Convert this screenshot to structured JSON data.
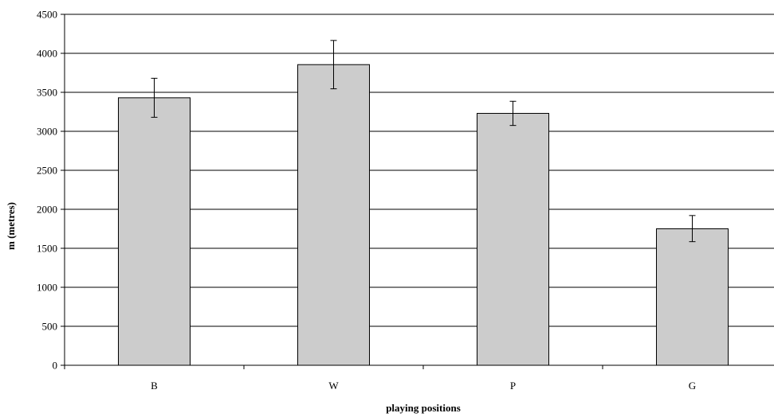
{
  "chart_data": {
    "type": "bar",
    "title": "",
    "xlabel": "playing positions",
    "ylabel": "m (metres)",
    "categories": [
      "B",
      "W",
      "P",
      "G"
    ],
    "values": [
      3430,
      3855,
      3230,
      1750
    ],
    "error_bars": [
      {
        "low": 3180,
        "high": 3680
      },
      {
        "low": 3545,
        "high": 4165
      },
      {
        "low": 3075,
        "high": 3385
      },
      {
        "low": 1585,
        "high": 1920
      }
    ],
    "ylim": [
      0,
      4500
    ],
    "yticks": [
      0,
      500,
      1000,
      1500,
      2000,
      2500,
      3000,
      3500,
      4000,
      4500
    ],
    "grid": "horizontal",
    "legend": "none",
    "colors": {
      "bar_fill": "#cccccc",
      "bar_stroke": "#000000",
      "grid": "#000000",
      "axis": "#000000",
      "error_bar": "#000000"
    }
  }
}
